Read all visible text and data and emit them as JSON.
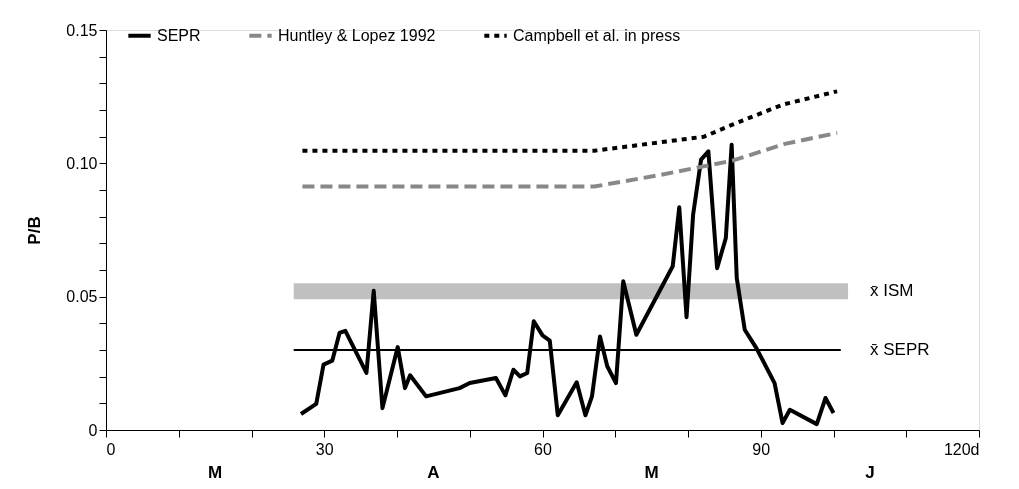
{
  "chart_data": {
    "type": "line",
    "ylabel": "P/B",
    "xlim": [
      0,
      120
    ],
    "xticks": [
      0,
      {
        "value": 10,
        "label": null
      },
      {
        "value": 20,
        "label": null
      },
      30,
      {
        "value": 40,
        "label": null
      },
      {
        "value": 50,
        "label": null
      },
      60,
      {
        "value": 70,
        "label": null
      },
      {
        "value": 80,
        "label": null
      },
      90,
      {
        "value": 100,
        "label": null
      },
      {
        "value": 110,
        "label": null
      },
      {
        "value": 120,
        "label": "120d"
      }
    ],
    "ylim": [
      0,
      0.15
    ],
    "yticks": [
      0,
      {
        "value": 0.01,
        "label": null
      },
      {
        "value": 0.02,
        "label": null
      },
      {
        "value": 0.03,
        "label": null
      },
      {
        "value": 0.04,
        "label": null
      },
      0.05,
      {
        "value": 0.06,
        "label": null
      },
      {
        "value": 0.07,
        "label": null
      },
      {
        "value": 0.08,
        "label": null
      },
      {
        "value": 0.09,
        "label": null
      },
      {
        "value": 0.1,
        "label": "0.10"
      },
      {
        "value": 0.11,
        "label": null
      },
      {
        "value": 0.12,
        "label": null
      },
      {
        "value": 0.13,
        "label": null
      },
      {
        "value": 0.14,
        "label": null
      },
      0.15
    ],
    "grid": false,
    "legend": "top",
    "marker": "none",
    "series": [
      {
        "name": "SEPR",
        "color": "#000000",
        "line_style": "solid",
        "x": [
          26.8,
          28.9,
          29.9,
          31.1,
          32.1,
          32.9,
          35.8,
          36.8,
          38.0,
          40.1,
          41.1,
          41.8,
          44.0,
          48.6,
          50.0,
          53.6,
          54.9,
          56.0,
          56.9,
          57.9,
          58.8,
          60.0,
          61.0,
          62.1,
          64.7,
          65.9,
          66.8,
          67.9,
          68.9,
          70.1,
          71.1,
          72.9,
          77.9,
          78.8,
          79.8,
          80.7,
          81.8,
          82.8,
          84.0,
          85.2,
          86.0,
          86.7,
          87.8,
          89.4,
          91.9,
          93.0,
          94.0,
          97.7,
          98.9,
          100.0
        ],
        "values": [
          0.006,
          0.0098,
          0.0245,
          0.026,
          0.0364,
          0.0372,
          0.0214,
          0.0522,
          0.0082,
          0.0311,
          0.0157,
          0.0205,
          0.0126,
          0.0157,
          0.0176,
          0.0195,
          0.013,
          0.0226,
          0.0201,
          0.0214,
          0.0408,
          0.0355,
          0.0335,
          0.0055,
          0.0179,
          0.0055,
          0.0126,
          0.0351,
          0.0239,
          0.0176,
          0.0558,
          0.0357,
          0.0614,
          0.0835,
          0.0423,
          0.0807,
          0.1014,
          0.1045,
          0.0607,
          0.072,
          0.107,
          0.057,
          0.0376,
          0.0307,
          0.0176,
          0.0026,
          0.0076,
          0.0022,
          0.012,
          0.0064
        ]
      },
      {
        "name": "Huntley & Lopez 1992",
        "color": "#888888",
        "line_style": "dashed",
        "x": [
          27,
          67.1,
          76.3,
          86.1,
          93.3,
          100.5
        ],
        "values": [
          0.0913,
          0.0913,
          0.0957,
          0.101,
          0.1073,
          0.1114
        ]
      },
      {
        "name": "Campbell et al. in press",
        "color": "#000000",
        "line_style": "dotted",
        "x": [
          27,
          67.1,
          82.2,
          86.1,
          93,
          100.5
        ],
        "values": [
          0.1047,
          0.1047,
          0.11,
          0.1145,
          0.122,
          0.127
        ]
      }
    ],
    "ref_lines": [
      {
        "axis": "y",
        "value": 0.03,
        "label": "x̄ SEPR",
        "color": "#000000"
      }
    ],
    "bands": [
      {
        "axis": "y",
        "from": 0.049,
        "to": 0.055,
        "label": "x̄ ISM",
        "color": "#c0c0c0"
      }
    ],
    "annotations": [
      "M",
      "A",
      "M",
      "J"
    ]
  }
}
